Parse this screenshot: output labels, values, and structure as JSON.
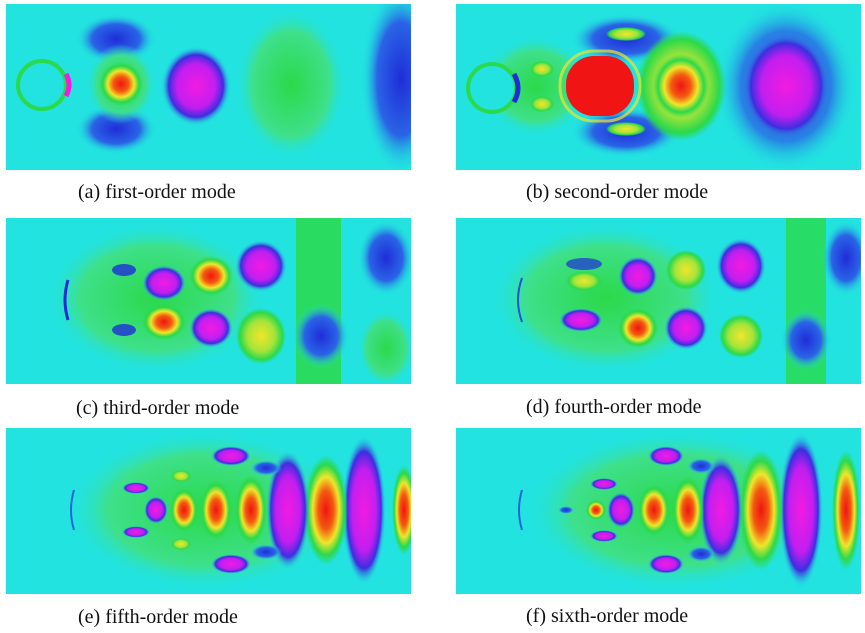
{
  "figure": {
    "panels": [
      {
        "caption": "(a) first-order mode"
      },
      {
        "caption": "(b) second-order mode"
      },
      {
        "caption": "(c) third-order mode"
      },
      {
        "caption": "(d) fourth-order mode"
      },
      {
        "caption": "(e) fifth-order mode"
      },
      {
        "caption": "(f) sixth-order mode"
      }
    ],
    "colors": {
      "background": "#22e3e0",
      "green": "#2bd94a",
      "yellow": "#f0e62a",
      "red": "#f01414",
      "magenta": "#f21be0",
      "blue": "#1f2dd8",
      "white": "#ffffff"
    }
  }
}
